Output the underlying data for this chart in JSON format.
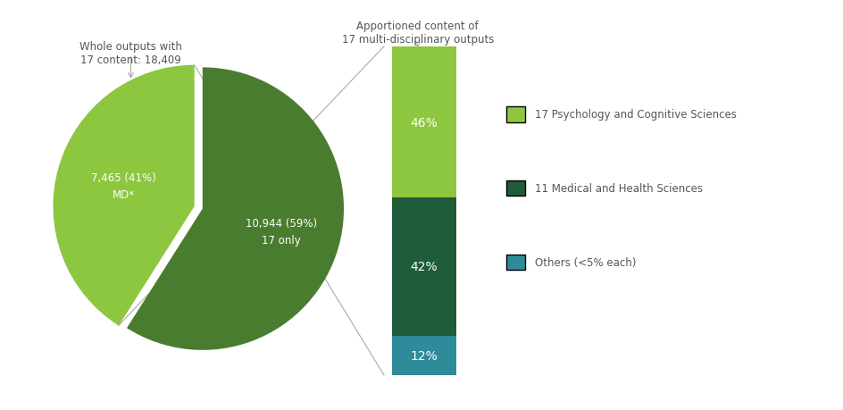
{
  "pie_values": [
    59,
    41
  ],
  "pie_colors": [
    "#4a7c2f",
    "#8dc63f"
  ],
  "pie_label1": [
    "10,944 (59%)",
    "7,465 (41%)"
  ],
  "pie_label2": [
    "17 only",
    "MD*"
  ],
  "pie_explode": [
    0,
    0.06
  ],
  "bar_values": [
    46,
    42,
    12
  ],
  "bar_colors": [
    "#8dc63f",
    "#1e5c3a",
    "#2e8b9a"
  ],
  "bar_labels": [
    "46%",
    "42%",
    "12%"
  ],
  "legend_labels": [
    "17 Psychology and Cognitive Sciences",
    "11 Medical and Health Sciences",
    "Others (<5% each)"
  ],
  "legend_colors": [
    "#8dc63f",
    "#1e5c3a",
    "#2e8b9a"
  ],
  "annotation_left": "Whole outputs with\n17 content: 18,409",
  "annotation_right": "Apportioned content of\n17 multi-disciplinary outputs",
  "bg_color": "#ffffff",
  "text_color": "#555555",
  "line_color": "#aaaaaa"
}
